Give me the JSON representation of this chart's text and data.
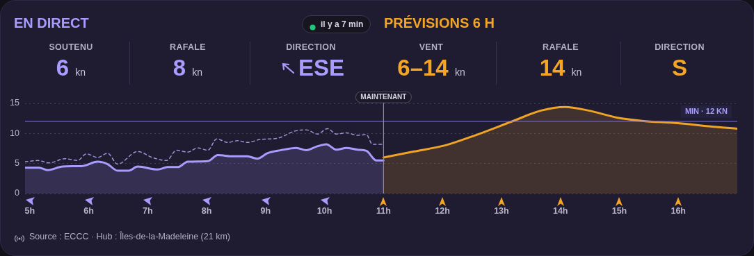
{
  "chart_data": [
    {
      "type": "other",
      "title": "EN DIRECT",
      "annotations": [
        "il y a 7 min",
        "PRÉVISIONS 6 H",
        "SOUTENU",
        "6 kn",
        "RAFALE",
        "8 kn",
        "DIRECTION",
        "ESE",
        "VENT",
        "6–14 kn",
        "RAFALE",
        "14 kn",
        "DIRECTION",
        "S"
      ]
    },
    {
      "type": "line",
      "xlim": [
        4.92,
        17
      ],
      "ylim": [
        0,
        15
      ],
      "yticks": [
        0,
        5,
        10,
        15
      ],
      "xticks": [
        {
          "value": 5,
          "label": "5h"
        },
        {
          "value": 6,
          "label": "6h"
        },
        {
          "value": 7,
          "label": "7h"
        },
        {
          "value": 8,
          "label": "8h"
        },
        {
          "value": 9,
          "label": "9h"
        },
        {
          "value": 10,
          "label": "10h"
        },
        {
          "value": 11,
          "label": "11h"
        },
        {
          "value": 12,
          "label": "12h"
        },
        {
          "value": 13,
          "label": "13h"
        },
        {
          "value": 14,
          "label": "14h"
        },
        {
          "value": 15,
          "label": "15h"
        },
        {
          "value": 16,
          "label": "16h"
        }
      ],
      "grid": "y",
      "legend": false,
      "marker": "none",
      "series": [
        {
          "type": "area",
          "color": "#a99cff",
          "line_style": "solid",
          "x": [
            4.92,
            5.16,
            5.3,
            5.56,
            5.9,
            6.15,
            6.32,
            6.49,
            6.68,
            6.83,
            7.17,
            7.34,
            7.51,
            7.68,
            8.02,
            8.19,
            8.44,
            8.69,
            8.86,
            9.03,
            9.25,
            9.52,
            9.69,
            9.86,
            10.03,
            10.2,
            10.37,
            10.56,
            10.71,
            10.88,
            11.0
          ],
          "values": [
            4.3,
            4.3,
            3.9,
            4.5,
            4.6,
            5.3,
            4.9,
            3.8,
            3.8,
            4.5,
            4.0,
            4.4,
            4.4,
            5.3,
            5.4,
            6.4,
            6.2,
            6.2,
            5.8,
            6.7,
            7.2,
            7.6,
            7.2,
            7.8,
            8.2,
            7.3,
            7.6,
            7.3,
            7.1,
            5.5,
            5.5
          ]
        },
        {
          "type": "line",
          "color": "#9d93d6",
          "line_style": "dashed",
          "x": [
            4.92,
            5.14,
            5.33,
            5.6,
            5.81,
            5.96,
            6.15,
            6.32,
            6.49,
            6.83,
            7.08,
            7.32,
            7.49,
            7.68,
            7.85,
            8.02,
            8.17,
            8.36,
            8.53,
            8.69,
            8.91,
            9.2,
            9.5,
            9.69,
            9.88,
            10.05,
            10.2,
            10.37,
            10.56,
            10.71,
            10.81,
            11.0
          ],
          "values": [
            5.3,
            5.5,
            5.1,
            5.8,
            5.5,
            6.6,
            6.0,
            6.7,
            4.9,
            7.0,
            6.0,
            5.5,
            7.2,
            6.9,
            7.6,
            7.2,
            9.1,
            8.5,
            8.8,
            8.5,
            9.0,
            9.2,
            10.4,
            10.6,
            9.9,
            10.8,
            9.9,
            10.1,
            9.7,
            9.8,
            8.2,
            8.2
          ]
        },
        {
          "type": "area",
          "color": "#f0a425",
          "line_style": "solid",
          "x": [
            11.0,
            11.52,
            12.04,
            12.53,
            13.18,
            13.67,
            14.08,
            14.48,
            14.97,
            15.38,
            15.99,
            16.6,
            17.0
          ],
          "values": [
            6.0,
            7.0,
            8.0,
            9.6,
            12.0,
            13.8,
            14.4,
            13.8,
            12.6,
            12.1,
            11.7,
            11.1,
            10.8
          ]
        }
      ],
      "ref_lines": [
        {
          "axis": "y",
          "value": 12,
          "label": "MIN · 12 KN",
          "color": "#7b6ff0"
        },
        {
          "axis": "x",
          "value": 11,
          "label": "MAINTENANT",
          "color": "#8e8ba3"
        }
      ],
      "annotations": [
        "Source : ECCC · Hub : Îles-de-la-Madeleine (21 km)"
      ]
    }
  ]
}
